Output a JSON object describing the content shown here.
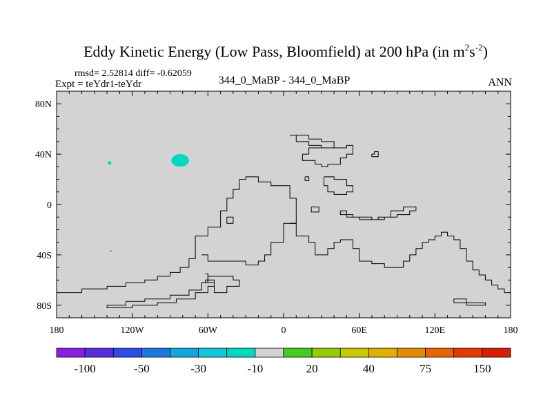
{
  "title": {
    "prefix": "Eddy Kinetic Energy (Low Pass, Bloomfield) at 200 hPa (in m",
    "sup1": "2",
    "mid": "s",
    "sup2": "-2",
    "suffix": ")"
  },
  "stats": "rmsd= 2.52814 diff= -0.62059",
  "expt": "Expt = teYdr1-teYdr",
  "case_label": "344_0_MaBP - 344_0_MaBP",
  "period": "ANN",
  "colors": {
    "background": "#ffffff",
    "plot_fill": "#d3d3d3",
    "coast": "#000000",
    "blob_cyan": "#00d9c0",
    "blob_green": "#33cc33"
  },
  "chart_data": {
    "type": "heatmap",
    "lon_range": [
      -180,
      180
    ],
    "lat_range": [
      -90,
      90
    ],
    "x_ticks": [
      {
        "lon": -180,
        "label": "180"
      },
      {
        "lon": -120,
        "label": "120W"
      },
      {
        "lon": -60,
        "label": "60W"
      },
      {
        "lon": 0,
        "label": "0"
      },
      {
        "lon": 60,
        "label": "60E"
      },
      {
        "lon": 120,
        "label": "120E"
      },
      {
        "lon": 180,
        "label": "180"
      }
    ],
    "y_ticks": [
      {
        "lat": 80,
        "label": "80N"
      },
      {
        "lat": 40,
        "label": "40N"
      },
      {
        "lat": 0,
        "label": "0"
      },
      {
        "lat": -40,
        "label": "40S"
      },
      {
        "lat": -80,
        "label": "80S"
      }
    ],
    "anomalies": [
      {
        "name": "anomaly-blob-north-pacific",
        "lon": -82,
        "lat": 35,
        "rlon": 7,
        "rlat": 5,
        "color": "#00d9c0"
      },
      {
        "name": "anomaly-blob-small-cyan",
        "lon": -138,
        "lat": 33,
        "rlon": 1.4,
        "rlat": 1.4,
        "color": "#00d9c0"
      },
      {
        "name": "anomaly-dot-green",
        "lon": -137,
        "lat": -37,
        "rlon": 0.6,
        "rlat": 0.8,
        "color": "#33cc33"
      }
    ],
    "colorbar": {
      "colors": [
        "#8a1fe0",
        "#5a2de0",
        "#2e4be5",
        "#1a78e0",
        "#12a6e0",
        "#10c7dc",
        "#00d9c0",
        "#d3d3d3",
        "#44cc22",
        "#99cc00",
        "#c8c800",
        "#e0b000",
        "#e88a00",
        "#e86400",
        "#e23c00",
        "#d81e00"
      ],
      "labels": [
        {
          "boundary": 1,
          "text": "-100"
        },
        {
          "boundary": 3,
          "text": "-50"
        },
        {
          "boundary": 5,
          "text": "-30"
        },
        {
          "boundary": 7,
          "text": "-10"
        },
        {
          "boundary": 9,
          "text": "20"
        },
        {
          "boundary": 11,
          "text": "40"
        },
        {
          "boundary": 13,
          "text": "75"
        },
        {
          "boundary": 15,
          "text": "150"
        }
      ]
    },
    "coastlines": [
      {
        "name": "coastline-america",
        "points": [
          [
            -180,
            -70
          ],
          [
            -160,
            -70
          ],
          [
            -160,
            -67
          ],
          [
            -140,
            -67
          ],
          [
            -140,
            -65
          ],
          [
            -125,
            -65
          ],
          [
            -125,
            -62
          ],
          [
            -110,
            -62
          ],
          [
            -110,
            -60
          ],
          [
            -100,
            -60
          ],
          [
            -100,
            -57
          ],
          [
            -90,
            -57
          ],
          [
            -90,
            -54
          ],
          [
            -82,
            -54
          ],
          [
            -82,
            -50
          ],
          [
            -75,
            -50
          ],
          [
            -75,
            -43
          ],
          [
            -70,
            -43
          ],
          [
            -70,
            -35
          ],
          [
            -70,
            -25
          ],
          [
            -60,
            -25
          ],
          [
            -60,
            -18
          ],
          [
            -50,
            -18
          ],
          [
            -50,
            -5
          ],
          [
            -45,
            -5
          ],
          [
            -45,
            5
          ],
          [
            -40,
            5
          ],
          [
            -40,
            12
          ],
          [
            -35,
            12
          ],
          [
            -35,
            20
          ],
          [
            -30,
            20
          ],
          [
            -30,
            22
          ],
          [
            -20,
            22
          ],
          [
            -20,
            18
          ],
          [
            -10,
            18
          ],
          [
            -10,
            15
          ],
          [
            0,
            15
          ],
          [
            5,
            15
          ],
          [
            5,
            5
          ],
          [
            10,
            5
          ],
          [
            10,
            -15
          ],
          [
            0,
            -15
          ],
          [
            0,
            -30
          ],
          [
            -10,
            -30
          ],
          [
            -10,
            -40
          ],
          [
            -15,
            -40
          ],
          [
            -15,
            -45
          ],
          [
            -20,
            -45
          ],
          [
            -20,
            -48
          ],
          [
            -30,
            -48
          ],
          [
            -30,
            -45
          ],
          [
            -60,
            -45
          ],
          [
            -60,
            -40
          ],
          [
            -65,
            -40
          ]
        ]
      },
      {
        "name": "coastline-africa-eurasia",
        "points": [
          [
            5,
            55
          ],
          [
            10,
            55
          ],
          [
            10,
            50
          ],
          [
            20,
            50
          ],
          [
            20,
            47
          ],
          [
            30,
            47
          ],
          [
            30,
            45
          ],
          [
            40,
            45
          ],
          [
            40,
            45
          ],
          [
            20,
            45
          ],
          [
            20,
            40
          ],
          [
            15,
            40
          ],
          [
            15,
            35
          ],
          [
            25,
            35
          ],
          [
            25,
            32
          ],
          [
            30,
            32
          ],
          [
            30,
            30
          ],
          [
            35,
            30
          ],
          [
            35,
            32
          ],
          [
            45,
            32
          ],
          [
            45,
            37
          ],
          [
            50,
            37
          ],
          [
            50,
            40
          ],
          [
            55,
            40
          ],
          [
            55,
            47
          ],
          [
            50,
            47
          ],
          [
            50,
            45
          ],
          [
            40,
            45
          ],
          [
            40,
            50
          ],
          [
            30,
            50
          ],
          [
            30,
            52
          ],
          [
            20,
            52
          ],
          [
            20,
            55
          ],
          [
            5,
            55
          ]
        ]
      },
      {
        "name": "coastline-south-continent",
        "points": [
          [
            5,
            -15
          ],
          [
            10,
            -15
          ],
          [
            10,
            -25
          ],
          [
            20,
            -25
          ],
          [
            20,
            -30
          ],
          [
            25,
            -30
          ],
          [
            25,
            -40
          ],
          [
            30,
            -40
          ],
          [
            35,
            -40
          ],
          [
            35,
            -35
          ],
          [
            40,
            -35
          ],
          [
            40,
            -30
          ],
          [
            45,
            -30
          ],
          [
            45,
            -28
          ],
          [
            55,
            -28
          ],
          [
            55,
            -35
          ],
          [
            60,
            -35
          ],
          [
            60,
            -45
          ],
          [
            70,
            -45
          ],
          [
            70,
            -47
          ],
          [
            80,
            -47
          ],
          [
            80,
            -50
          ],
          [
            95,
            -50
          ],
          [
            95,
            -45
          ],
          [
            100,
            -45
          ],
          [
            100,
            -40
          ],
          [
            105,
            -40
          ],
          [
            105,
            -35
          ],
          [
            110,
            -35
          ],
          [
            110,
            -30
          ],
          [
            115,
            -30
          ],
          [
            115,
            -28
          ],
          [
            120,
            -28
          ],
          [
            120,
            -25
          ],
          [
            125,
            -25
          ],
          [
            125,
            -22
          ],
          [
            130,
            -22
          ],
          [
            130,
            -25
          ],
          [
            135,
            -25
          ],
          [
            135,
            -28
          ],
          [
            140,
            -28
          ],
          [
            140,
            -35
          ],
          [
            145,
            -35
          ],
          [
            145,
            -45
          ],
          [
            150,
            -45
          ],
          [
            150,
            -52
          ],
          [
            155,
            -52
          ],
          [
            155,
            -56
          ],
          [
            160,
            -56
          ],
          [
            160,
            -60
          ],
          [
            165,
            -60
          ],
          [
            165,
            -64
          ],
          [
            170,
            -64
          ],
          [
            170,
            -67
          ],
          [
            175,
            -67
          ],
          [
            175,
            -70
          ],
          [
            180,
            -70
          ]
        ]
      },
      {
        "name": "coastline-equatorial-strip",
        "points": [
          [
            45,
            -5
          ],
          [
            50,
            -5
          ],
          [
            50,
            -10
          ],
          [
            60,
            -10
          ],
          [
            60,
            -12
          ],
          [
            75,
            -12
          ],
          [
            75,
            -10
          ],
          [
            85,
            -10
          ],
          [
            85,
            -5
          ],
          [
            95,
            -5
          ],
          [
            95,
            -2
          ],
          [
            105,
            -2
          ],
          [
            105,
            -5
          ],
          [
            100,
            -5
          ],
          [
            100,
            -8
          ],
          [
            90,
            -8
          ],
          [
            90,
            -10
          ],
          [
            80,
            -10
          ],
          [
            80,
            -12
          ],
          [
            70,
            -12
          ],
          [
            70,
            -10
          ],
          [
            55,
            -10
          ],
          [
            55,
            -8
          ],
          [
            45,
            -8
          ],
          [
            45,
            -5
          ]
        ]
      },
      {
        "name": "coastline-east-asia-small",
        "points": [
          [
            32,
            22
          ],
          [
            40,
            22
          ],
          [
            40,
            20
          ],
          [
            50,
            20
          ],
          [
            50,
            15
          ],
          [
            55,
            15
          ],
          [
            55,
            10
          ],
          [
            50,
            10
          ],
          [
            50,
            8
          ],
          [
            40,
            8
          ],
          [
            40,
            10
          ],
          [
            35,
            10
          ],
          [
            35,
            15
          ],
          [
            32,
            15
          ],
          [
            32,
            22
          ]
        ]
      },
      {
        "name": "coastline-island-a",
        "points": [
          [
            -45,
            -10
          ],
          [
            -40,
            -10
          ],
          [
            -40,
            -15
          ],
          [
            -45,
            -15
          ],
          [
            -45,
            -10
          ]
        ]
      },
      {
        "name": "coastline-island-b",
        "points": [
          [
            22,
            -2
          ],
          [
            28,
            -2
          ],
          [
            28,
            -6
          ],
          [
            22,
            -6
          ],
          [
            22,
            -2
          ]
        ]
      },
      {
        "name": "coastline-island-c",
        "points": [
          [
            17,
            22
          ],
          [
            20,
            22
          ],
          [
            20,
            19
          ],
          [
            17,
            19
          ],
          [
            17,
            22
          ]
        ]
      },
      {
        "name": "coastline-island-d",
        "points": [
          [
            72,
            42
          ],
          [
            75,
            42
          ],
          [
            75,
            38
          ],
          [
            70,
            38
          ],
          [
            70,
            40
          ],
          [
            72,
            40
          ],
          [
            72,
            42
          ]
        ]
      },
      {
        "name": "coastline-south-ridge",
        "points": [
          [
            -140,
            -80
          ],
          [
            -125,
            -80
          ],
          [
            -125,
            -77
          ],
          [
            -110,
            -77
          ],
          [
            -110,
            -75
          ],
          [
            -90,
            -75
          ],
          [
            -90,
            -72
          ],
          [
            -75,
            -72
          ],
          [
            -75,
            -68
          ],
          [
            -65,
            -68
          ],
          [
            -65,
            -62
          ],
          [
            -60,
            -62
          ],
          [
            -60,
            -55
          ],
          [
            -62,
            -55
          ]
        ]
      },
      {
        "name": "coastline-south-inner",
        "points": [
          [
            -140,
            -80
          ],
          [
            -140,
            -82
          ],
          [
            -120,
            -82
          ],
          [
            -120,
            -80
          ],
          [
            -100,
            -80
          ],
          [
            -100,
            -78
          ],
          [
            -85,
            -78
          ],
          [
            -85,
            -75
          ],
          [
            -70,
            -75
          ],
          [
            -70,
            -70
          ],
          [
            -60,
            -70
          ],
          [
            -60,
            -65
          ],
          [
            -55,
            -65
          ],
          [
            -55,
            -60
          ],
          [
            -62,
            -60
          ],
          [
            -62,
            -62
          ]
        ]
      },
      {
        "name": "coastline-peninsula",
        "points": [
          [
            -60,
            -57
          ],
          [
            -40,
            -57
          ],
          [
            -40,
            -60
          ],
          [
            -35,
            -60
          ],
          [
            -35,
            -65
          ],
          [
            -45,
            -65
          ],
          [
            -45,
            -70
          ],
          [
            -55,
            -70
          ],
          [
            -55,
            -62
          ],
          [
            -60,
            -62
          ],
          [
            -60,
            -57
          ]
        ]
      },
      {
        "name": "coastline-south-east",
        "points": [
          [
            135,
            -75
          ],
          [
            145,
            -75
          ],
          [
            145,
            -78
          ],
          [
            160,
            -78
          ],
          [
            160,
            -80
          ],
          [
            145,
            -80
          ],
          [
            145,
            -78
          ],
          [
            135,
            -78
          ],
          [
            135,
            -75
          ]
        ]
      }
    ]
  }
}
